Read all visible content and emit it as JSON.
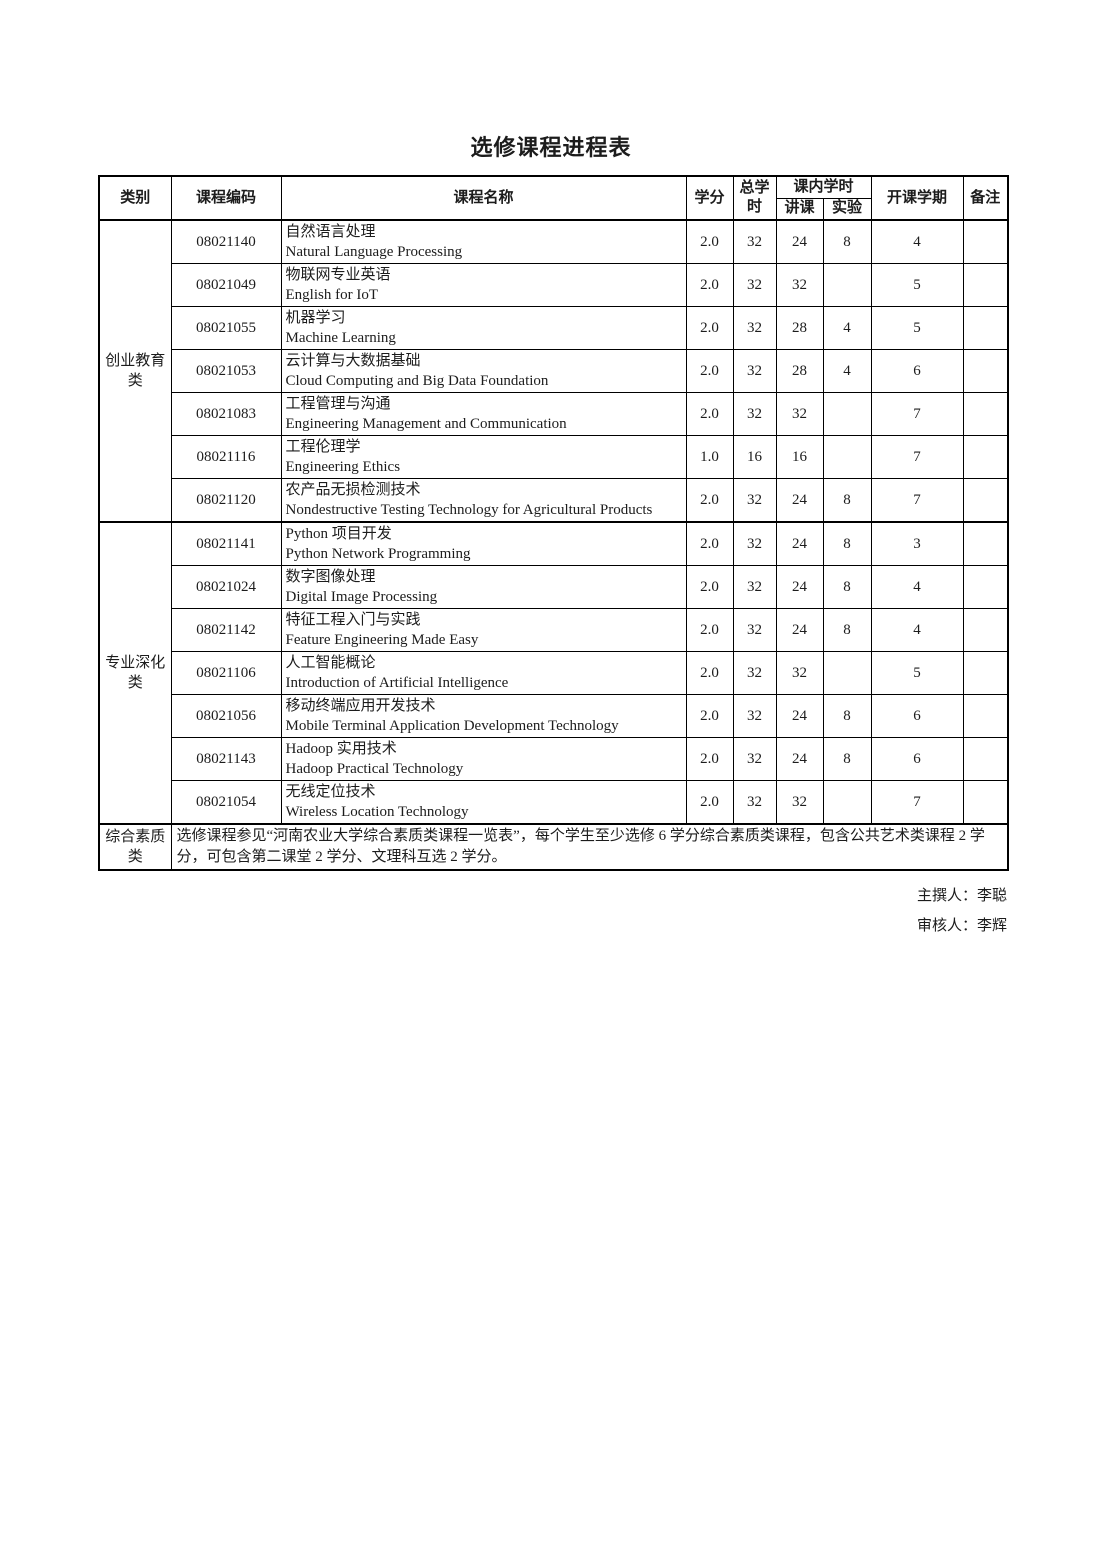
{
  "page": {
    "title": "选修课程进程表",
    "footer": {
      "author": "主撰人：李聪",
      "reviewer": "审核人：李辉"
    }
  },
  "table": {
    "headers": {
      "category": "类别",
      "course_code": "课程编码",
      "course_name": "课程名称",
      "credits": "学分",
      "total_hours": "总学时",
      "in_class_hours": "课内学时",
      "lecture": "讲课",
      "experiment": "实验",
      "semester": "开课学期",
      "remarks": "备注"
    },
    "groups": [
      {
        "category": "创业教育类",
        "rows": [
          {
            "code": "08021140",
            "name_zh": "自然语言处理",
            "name_en": "Natural Language Processing",
            "credits": "2.0",
            "total": "32",
            "lecture": "24",
            "experiment": "8",
            "semester": "4",
            "remark": ""
          },
          {
            "code": "08021049",
            "name_zh": "物联网专业英语",
            "name_en": "English for IoT",
            "credits": "2.0",
            "total": "32",
            "lecture": "32",
            "experiment": "",
            "semester": "5",
            "remark": ""
          },
          {
            "code": "08021055",
            "name_zh": "机器学习",
            "name_en": "Machine Learning",
            "credits": "2.0",
            "total": "32",
            "lecture": "28",
            "experiment": "4",
            "semester": "5",
            "remark": ""
          },
          {
            "code": "08021053",
            "name_zh": "云计算与大数据基础",
            "name_en": "Cloud Computing and Big Data Foundation",
            "credits": "2.0",
            "total": "32",
            "lecture": "28",
            "experiment": "4",
            "semester": "6",
            "remark": ""
          },
          {
            "code": "08021083",
            "name_zh": "工程管理与沟通",
            "name_en": "Engineering Management and Communication",
            "credits": "2.0",
            "total": "32",
            "lecture": "32",
            "experiment": "",
            "semester": "7",
            "remark": ""
          },
          {
            "code": "08021116",
            "name_zh": "工程伦理学",
            "name_en": "Engineering Ethics",
            "credits": "1.0",
            "total": "16",
            "lecture": "16",
            "experiment": "",
            "semester": "7",
            "remark": ""
          },
          {
            "code": "08021120",
            "name_zh": "农产品无损检测技术",
            "name_en": "Nondestructive Testing Technology for Agricultural Products",
            "credits": "2.0",
            "total": "32",
            "lecture": "24",
            "experiment": "8",
            "semester": "7",
            "remark": ""
          }
        ]
      },
      {
        "category": "专业深化类",
        "rows": [
          {
            "code": "08021141",
            "name_zh": "Python 项目开发",
            "name_en": "Python Network Programming",
            "credits": "2.0",
            "total": "32",
            "lecture": "24",
            "experiment": "8",
            "semester": "3",
            "remark": ""
          },
          {
            "code": "08021024",
            "name_zh": "数字图像处理",
            "name_en": "Digital Image Processing",
            "credits": "2.0",
            "total": "32",
            "lecture": "24",
            "experiment": "8",
            "semester": "4",
            "remark": ""
          },
          {
            "code": "08021142",
            "name_zh": "特征工程入门与实践",
            "name_en": "Feature Engineering Made Easy",
            "credits": "2.0",
            "total": "32",
            "lecture": "24",
            "experiment": "8",
            "semester": "4",
            "remark": ""
          },
          {
            "code": "08021106",
            "name_zh": "人工智能概论",
            "name_en": "Introduction of Artificial Intelligence",
            "credits": "2.0",
            "total": "32",
            "lecture": "32",
            "experiment": "",
            "semester": "5",
            "remark": ""
          },
          {
            "code": "08021056",
            "name_zh": "移动终端应用开发技术",
            "name_en": "Mobile Terminal Application Development Technology",
            "credits": "2.0",
            "total": "32",
            "lecture": "24",
            "experiment": "8",
            "semester": "6",
            "remark": ""
          },
          {
            "code": "08021143",
            "name_zh": "Hadoop 实用技术",
            "name_en": "Hadoop Practical Technology",
            "credits": "2.0",
            "total": "32",
            "lecture": "24",
            "experiment": "8",
            "semester": "6",
            "remark": ""
          },
          {
            "code": "08021054",
            "name_zh": "无线定位技术",
            "name_en": "Wireless Location Technology",
            "credits": "2.0",
            "total": "32",
            "lecture": "32",
            "experiment": "",
            "semester": "7",
            "remark": ""
          }
        ]
      }
    ],
    "note_row": {
      "category": "综合素质类",
      "note": "选修课程参见“河南农业大学综合素质类课程一览表”，每个学生至少选修 6 学分综合素质类课程，包含公共艺术类课程 2 学分，可包含第二课堂 2 学分、文理科互选 2 学分。"
    }
  }
}
